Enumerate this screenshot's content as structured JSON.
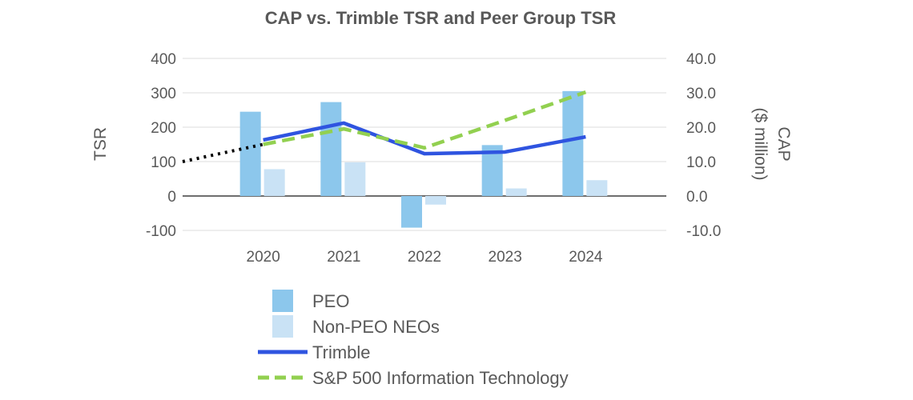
{
  "chart_data": {
    "type": "bar+line",
    "title": "CAP vs. Trimble TSR and Peer Group TSR",
    "categories": [
      "2020",
      "2021",
      "2022",
      "2023",
      "2024"
    ],
    "left_axis": {
      "label": "TSR",
      "ylim": [
        -100,
        400
      ],
      "ticks": [
        400,
        300,
        200,
        100,
        0,
        -100
      ],
      "tick_labels": [
        "400",
        "300",
        "200",
        "100",
        "0",
        "-100"
      ]
    },
    "right_axis": {
      "label": "CAP ($ million)",
      "label_line1": "CAP",
      "label_line2": "($ million)",
      "ylim": [
        -10,
        40
      ],
      "ticks": [
        40,
        30,
        20,
        10,
        0,
        -10
      ],
      "tick_labels": [
        "40.0",
        "30.0",
        "20.0",
        "10.0",
        "0.0",
        "-10.0"
      ]
    },
    "bar_series": [
      {
        "name": "PEO",
        "axis": "right",
        "color": "#8cc7ec",
        "values": [
          24.5,
          27.3,
          -9.2,
          14.8,
          30.5
        ]
      },
      {
        "name": "Non-PEO NEOs",
        "axis": "right",
        "color": "#c9e2f5",
        "values": [
          7.8,
          9.8,
          -2.5,
          2.2,
          4.6
        ]
      }
    ],
    "line_series": [
      {
        "name": "Trimble",
        "axis": "left",
        "color": "#2f54e0",
        "style": "solid",
        "values": [
          163,
          212,
          123,
          128,
          172
        ]
      },
      {
        "name": "S&P 500 Information Technology",
        "axis": "left",
        "color": "#92d050",
        "style": "dashed",
        "values": [
          150,
          195,
          140,
          220,
          302
        ]
      }
    ],
    "lead_in": {
      "color": "#000000",
      "style": "dotted",
      "start_value": 100,
      "end_value": 150
    },
    "legend": {
      "position": "bottom",
      "entries": [
        "PEO",
        "Non-PEO NEOs",
        "Trimble",
        "S&P 500 Information Technology"
      ]
    }
  }
}
